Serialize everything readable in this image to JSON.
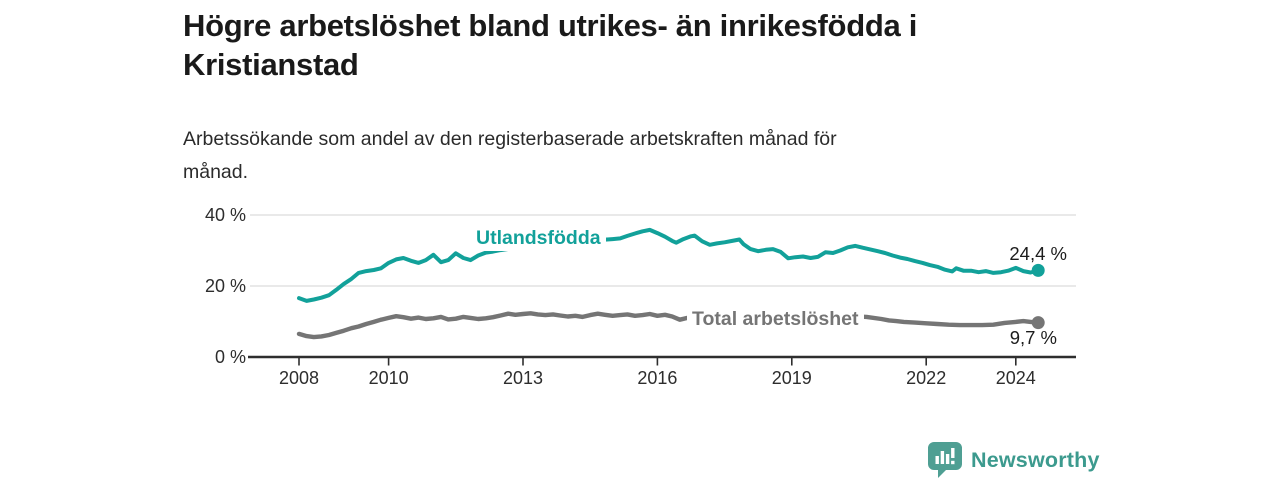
{
  "header": {
    "title_line1": "Högre arbetslöshet bland utrikes- än inrikesfödda i",
    "title_line2": "Kristianstad",
    "subtitle_line1": "Arbetssökande som andel av den registerbaserade arbetskraften månad för",
    "subtitle_line2": "månad."
  },
  "footer": {
    "brand": "Newsworthy",
    "logo_icon": "bar-chart-speech-bubble",
    "logo_color": "#4f9f93",
    "text_color": "#3c9a8e"
  },
  "chart_data": {
    "type": "line",
    "title": "Högre arbetslöshet bland utrikes- än inrikesfödda i Kristianstad",
    "subtitle": "Arbetssökande som andel av den registerbaserade arbetskraften månad för månad.",
    "xlabel": "",
    "ylabel": "",
    "grid": "horizontal",
    "legend_position": "inline-labels",
    "xlim": [
      2006.9,
      2025.4
    ],
    "ylim": [
      0,
      43
    ],
    "x_ticks": [
      2008,
      2010,
      2013,
      2016,
      2019,
      2022,
      2024
    ],
    "y_tick_values": [
      0,
      20,
      40
    ],
    "y_tick_labels": [
      "0 %",
      "20 %",
      "40 %"
    ],
    "axis_color": "#2e2e2e",
    "gridline_color": "#dcdcdc",
    "series": [
      {
        "name": "Utlandsfödda",
        "color": "#12a19a",
        "end_value": 24.4,
        "end_label": "24,4 %",
        "points": [
          [
            2008,
            16.6
          ],
          [
            2008.17,
            15.8
          ],
          [
            2008.33,
            16.2
          ],
          [
            2008.5,
            16.7
          ],
          [
            2008.67,
            17.4
          ],
          [
            2008.83,
            18.9
          ],
          [
            2009,
            20.6
          ],
          [
            2009.17,
            22
          ],
          [
            2009.33,
            23.7
          ],
          [
            2009.5,
            24.2
          ],
          [
            2009.67,
            24.5
          ],
          [
            2009.83,
            25
          ],
          [
            2010,
            26.5
          ],
          [
            2010.17,
            27.5
          ],
          [
            2010.33,
            27.9
          ],
          [
            2010.5,
            27.1
          ],
          [
            2010.67,
            26.5
          ],
          [
            2010.83,
            27.3
          ],
          [
            2011,
            28.8
          ],
          [
            2011.17,
            26.7
          ],
          [
            2011.33,
            27.3
          ],
          [
            2011.5,
            29.2
          ],
          [
            2011.67,
            27.9
          ],
          [
            2011.83,
            27.3
          ],
          [
            2012,
            28.6
          ],
          [
            2012.17,
            29.4
          ],
          [
            2012.33,
            29.7
          ],
          [
            2012.5,
            30.1
          ],
          [
            2012.75,
            30.6
          ],
          [
            2013,
            30.9
          ],
          [
            2013.25,
            31.3
          ],
          [
            2013.5,
            31.7
          ],
          [
            2013.75,
            32
          ],
          [
            2014,
            32.3
          ],
          [
            2014.25,
            32.6
          ],
          [
            2014.5,
            32.9
          ],
          [
            2014.75,
            33
          ],
          [
            2015,
            33.2
          ],
          [
            2015.17,
            33.4
          ],
          [
            2015.33,
            34.1
          ],
          [
            2015.5,
            34.8
          ],
          [
            2015.67,
            35.4
          ],
          [
            2015.83,
            35.8
          ],
          [
            2016,
            34.9
          ],
          [
            2016.17,
            33.9
          ],
          [
            2016.33,
            32.7
          ],
          [
            2016.42,
            32.2
          ],
          [
            2016.58,
            33.2
          ],
          [
            2016.75,
            34
          ],
          [
            2016.83,
            34.2
          ],
          [
            2017,
            32.6
          ],
          [
            2017.17,
            31.6
          ],
          [
            2017.33,
            32
          ],
          [
            2017.5,
            32.3
          ],
          [
            2017.67,
            32.7
          ],
          [
            2017.83,
            33.1
          ],
          [
            2017.92,
            31.8
          ],
          [
            2018.08,
            30.4
          ],
          [
            2018.25,
            29.8
          ],
          [
            2018.42,
            30.2
          ],
          [
            2018.58,
            30.4
          ],
          [
            2018.75,
            29.6
          ],
          [
            2018.92,
            27.8
          ],
          [
            2019.08,
            28.1
          ],
          [
            2019.25,
            28.3
          ],
          [
            2019.42,
            27.9
          ],
          [
            2019.58,
            28.2
          ],
          [
            2019.75,
            29.5
          ],
          [
            2019.92,
            29.3
          ],
          [
            2020.08,
            30
          ],
          [
            2020.25,
            30.9
          ],
          [
            2020.42,
            31.3
          ],
          [
            2020.58,
            30.8
          ],
          [
            2020.75,
            30.3
          ],
          [
            2020.92,
            29.8
          ],
          [
            2021.08,
            29.3
          ],
          [
            2021.25,
            28.6
          ],
          [
            2021.42,
            28
          ],
          [
            2021.58,
            27.6
          ],
          [
            2021.75,
            27
          ],
          [
            2021.92,
            26.5
          ],
          [
            2022.08,
            25.9
          ],
          [
            2022.25,
            25.4
          ],
          [
            2022.42,
            24.6
          ],
          [
            2022.58,
            24.1
          ],
          [
            2022.67,
            25
          ],
          [
            2022.83,
            24.3
          ],
          [
            2023,
            24.3
          ],
          [
            2023.17,
            23.9
          ],
          [
            2023.33,
            24.2
          ],
          [
            2023.5,
            23.7
          ],
          [
            2023.67,
            23.9
          ],
          [
            2023.83,
            24.3
          ],
          [
            2024,
            25.1
          ],
          [
            2024.17,
            24.2
          ],
          [
            2024.33,
            23.8
          ],
          [
            2024.5,
            24.4
          ]
        ]
      },
      {
        "name": "Total arbetslöshet",
        "color": "#757575",
        "end_value": 9.7,
        "end_label": "9,7 %",
        "points": [
          [
            2008,
            6.5
          ],
          [
            2008.17,
            5.9
          ],
          [
            2008.33,
            5.6
          ],
          [
            2008.5,
            5.8
          ],
          [
            2008.67,
            6.2
          ],
          [
            2008.83,
            6.8
          ],
          [
            2009,
            7.4
          ],
          [
            2009.17,
            8.1
          ],
          [
            2009.33,
            8.6
          ],
          [
            2009.5,
            9.3
          ],
          [
            2009.67,
            9.9
          ],
          [
            2009.83,
            10.5
          ],
          [
            2010,
            11
          ],
          [
            2010.17,
            11.5
          ],
          [
            2010.33,
            11.2
          ],
          [
            2010.5,
            10.8
          ],
          [
            2010.67,
            11.1
          ],
          [
            2010.83,
            10.7
          ],
          [
            2011,
            10.9
          ],
          [
            2011.17,
            11.3
          ],
          [
            2011.33,
            10.6
          ],
          [
            2011.5,
            10.8
          ],
          [
            2011.67,
            11.3
          ],
          [
            2011.83,
            11
          ],
          [
            2012,
            10.7
          ],
          [
            2012.17,
            10.9
          ],
          [
            2012.33,
            11.2
          ],
          [
            2012.5,
            11.7
          ],
          [
            2012.67,
            12.2
          ],
          [
            2012.83,
            11.9
          ],
          [
            2013,
            12.1
          ],
          [
            2013.17,
            12.3
          ],
          [
            2013.33,
            12
          ],
          [
            2013.5,
            11.8
          ],
          [
            2013.67,
            12
          ],
          [
            2013.83,
            11.7
          ],
          [
            2014,
            11.4
          ],
          [
            2014.17,
            11.6
          ],
          [
            2014.33,
            11.3
          ],
          [
            2014.5,
            11.8
          ],
          [
            2014.67,
            12.2
          ],
          [
            2014.83,
            11.9
          ],
          [
            2015,
            11.6
          ],
          [
            2015.17,
            11.8
          ],
          [
            2015.33,
            12
          ],
          [
            2015.5,
            11.6
          ],
          [
            2015.67,
            11.8
          ],
          [
            2015.83,
            12.1
          ],
          [
            2016,
            11.6
          ],
          [
            2016.17,
            11.9
          ],
          [
            2016.33,
            11.4
          ],
          [
            2016.5,
            10.5
          ],
          [
            2016.67,
            11
          ],
          [
            2017,
            11.4
          ],
          [
            2017.33,
            11.7
          ],
          [
            2017.67,
            11.3
          ],
          [
            2018,
            11
          ],
          [
            2018.33,
            10.8
          ],
          [
            2018.67,
            10.5
          ],
          [
            2019,
            10.3
          ],
          [
            2019.33,
            10.1
          ],
          [
            2019.67,
            10.2
          ],
          [
            2020,
            10.8
          ],
          [
            2020.33,
            11.5
          ],
          [
            2020.67,
            11.3
          ],
          [
            2021,
            10.7
          ],
          [
            2021.17,
            10.3
          ],
          [
            2021.33,
            10.1
          ],
          [
            2021.5,
            9.9
          ],
          [
            2021.75,
            9.7
          ],
          [
            2022,
            9.5
          ],
          [
            2022.25,
            9.3
          ],
          [
            2022.5,
            9.1
          ],
          [
            2022.75,
            9
          ],
          [
            2023,
            9
          ],
          [
            2023.25,
            9
          ],
          [
            2023.5,
            9.1
          ],
          [
            2023.75,
            9.6
          ],
          [
            2024,
            9.9
          ],
          [
            2024.17,
            10.1
          ],
          [
            2024.33,
            9.9
          ],
          [
            2024.5,
            9.7
          ]
        ]
      }
    ]
  }
}
